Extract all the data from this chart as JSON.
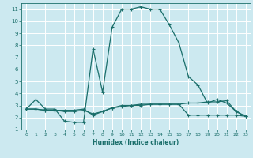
{
  "xlabel": "Humidex (Indice chaleur)",
  "bg_color": "#cce9f0",
  "grid_color": "#ffffff",
  "line_color": "#1a6e6a",
  "xlim": [
    -0.5,
    23.5
  ],
  "ylim": [
    1.0,
    11.5
  ],
  "yticks": [
    1,
    2,
    3,
    4,
    5,
    6,
    7,
    8,
    9,
    10,
    11
  ],
  "xticks": [
    0,
    1,
    2,
    3,
    4,
    5,
    6,
    7,
    8,
    9,
    10,
    11,
    12,
    13,
    14,
    15,
    16,
    17,
    18,
    19,
    20,
    21,
    22,
    23
  ],
  "line1_x": [
    0,
    1,
    2,
    3,
    4,
    5,
    6,
    7,
    8,
    9,
    10,
    11,
    12,
    13,
    14,
    15,
    16,
    17,
    18,
    19,
    20,
    21,
    22,
    23
  ],
  "line1_y": [
    2.7,
    3.5,
    2.7,
    2.7,
    1.7,
    1.6,
    1.6,
    7.7,
    4.1,
    9.5,
    11.0,
    11.0,
    11.2,
    11.0,
    11.0,
    9.7,
    8.2,
    5.4,
    4.7,
    3.2,
    3.5,
    3.2,
    2.5,
    2.1
  ],
  "line2_x": [
    0,
    1,
    2,
    3,
    4,
    5,
    6,
    7,
    8,
    9,
    10,
    11,
    12,
    13,
    14,
    15,
    16,
    17,
    18,
    19,
    20,
    21,
    22,
    23
  ],
  "line2_y": [
    2.7,
    2.7,
    2.6,
    2.6,
    2.5,
    2.5,
    2.6,
    2.3,
    2.5,
    2.8,
    3.0,
    3.0,
    3.1,
    3.1,
    3.1,
    3.1,
    3.1,
    3.2,
    3.2,
    3.3,
    3.3,
    3.4,
    2.5,
    2.1
  ],
  "line3_x": [
    0,
    1,
    2,
    3,
    4,
    5,
    6,
    7,
    8,
    9,
    10,
    11,
    12,
    13,
    14,
    15,
    16,
    17,
    18,
    19,
    20,
    21,
    22,
    23
  ],
  "line3_y": [
    2.7,
    2.7,
    2.6,
    2.6,
    2.6,
    2.6,
    2.7,
    2.2,
    2.5,
    2.8,
    2.9,
    3.0,
    3.0,
    3.1,
    3.1,
    3.1,
    3.1,
    2.2,
    2.2,
    2.2,
    2.2,
    2.2,
    2.2,
    2.1
  ]
}
